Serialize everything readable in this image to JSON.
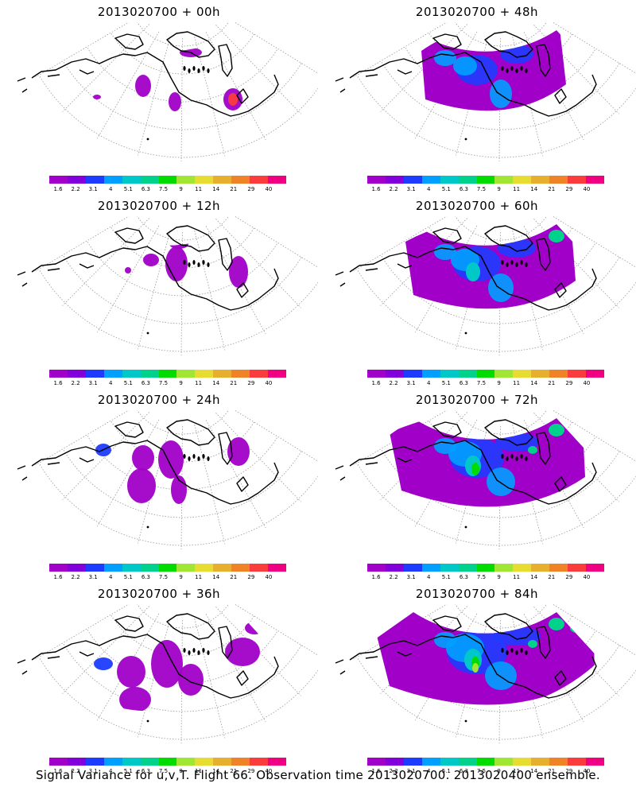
{
  "panels": [
    {
      "title": "2013020700 + 00h",
      "intensity": 0
    },
    {
      "title": "2013020700 + 48h",
      "intensity": 4
    },
    {
      "title": "2013020700 + 12h",
      "intensity": 1
    },
    {
      "title": "2013020700 + 60h",
      "intensity": 5
    },
    {
      "title": "2013020700 + 24h",
      "intensity": 2
    },
    {
      "title": "2013020700 + 72h",
      "intensity": 6
    },
    {
      "title": "2013020700 + 36h",
      "intensity": 3
    },
    {
      "title": "2013020700 + 84h",
      "intensity": 7
    }
  ],
  "colorbar": {
    "labels": [
      "1.6",
      "2.2",
      "3.1",
      "4",
      "5.1",
      "6.3",
      "7.5",
      "9",
      "11",
      "14",
      "21",
      "29",
      "40"
    ],
    "colors": [
      "#a000c8",
      "#8200dc",
      "#1e3cff",
      "#00a0ff",
      "#00c8c8",
      "#00d28c",
      "#00dc00",
      "#a0e632",
      "#e6dc32",
      "#e6af2d",
      "#f08228",
      "#fa3c3c",
      "#f00082"
    ]
  },
  "footer": "Signal Variance for u,v,T. Flight 66. Observation time 2013020700. 2013020400 ensemble."
}
